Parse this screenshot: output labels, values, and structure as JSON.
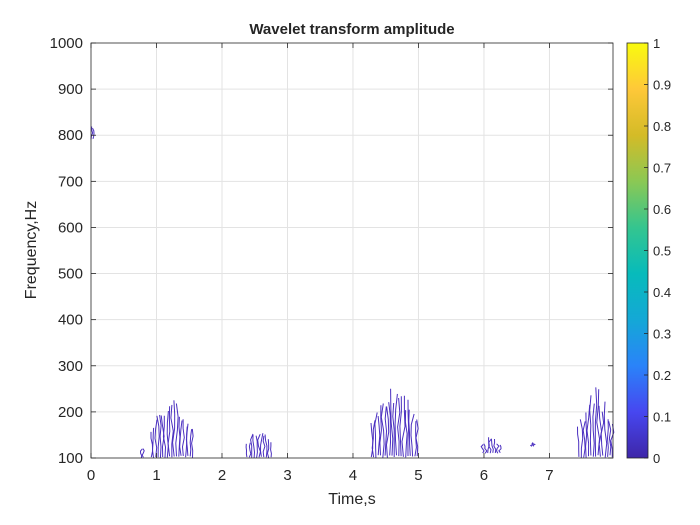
{
  "chart_data": {
    "type": "heatmap",
    "title": "Wavelet transform amplitude",
    "xlabel": "Time,s",
    "ylabel": "Frequency,Hz",
    "xlim": [
      0,
      7.97
    ],
    "ylim": [
      100,
      1000
    ],
    "grid": true,
    "x_ticks": [
      0,
      1,
      2,
      3,
      4,
      5,
      6,
      7
    ],
    "y_ticks": [
      100,
      200,
      300,
      400,
      500,
      600,
      700,
      800,
      900,
      1000
    ],
    "colorbar": {
      "range": [
        0,
        1
      ],
      "ticks": [
        0,
        0.1,
        0.2,
        0.3,
        0.4,
        0.5,
        0.6,
        0.7,
        0.8,
        0.9,
        1
      ],
      "colormap": "parula",
      "colors": [
        "#3e26a8",
        "#4747f0",
        "#2a83f9",
        "#14a8d6",
        "#07bbbb",
        "#34c58f",
        "#8bc854",
        "#d4bb27",
        "#fec839",
        "#f9fb0e"
      ]
    },
    "contour_color": "#4a2fc0",
    "regions": [
      {
        "t_start": 0.0,
        "t_end": 0.02,
        "f_low": 790,
        "f_high": 850
      },
      {
        "t_start": 0.77,
        "t_end": 0.8,
        "f_low": 100,
        "f_high": 140
      },
      {
        "t_start": 0.92,
        "t_end": 1.55,
        "f_low": 100,
        "f_high": 230
      },
      {
        "t_start": 2.38,
        "t_end": 2.75,
        "f_low": 100,
        "f_high": 170
      },
      {
        "t_start": 4.28,
        "t_end": 4.98,
        "f_low": 100,
        "f_high": 260
      },
      {
        "t_start": 5.98,
        "t_end": 6.25,
        "f_low": 110,
        "f_high": 150
      },
      {
        "t_start": 6.73,
        "t_end": 6.76,
        "f_low": 125,
        "f_high": 145
      },
      {
        "t_start": 7.45,
        "t_end": 7.96,
        "f_low": 100,
        "f_high": 255
      }
    ]
  }
}
